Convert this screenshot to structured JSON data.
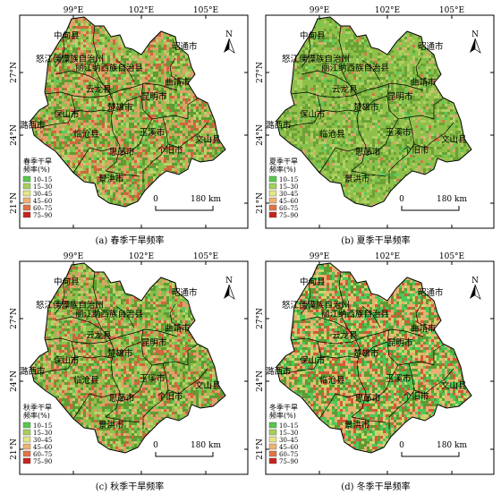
{
  "panels": [
    {
      "caption": "(a) 春季干旱频率",
      "legend_title_lines": [
        "春季干旱",
        "频率(%)"
      ],
      "palette": {
        "base": "#8fc04a",
        "dark": "#5f9a32",
        "light": "#b4d46a",
        "dry1": "#e0a06a",
        "dry2": "#d0663e",
        "wet": "#5fc85a"
      },
      "dry_density": 0.35,
      "wet_density": 0.04
    },
    {
      "caption": "(b) 夏季干旱频率",
      "legend_title_lines": [
        "夏季干旱",
        "频率(%)"
      ],
      "palette": {
        "base": "#8fc04a",
        "dark": "#6aa236",
        "light": "#b0d064",
        "dry1": "#d8a872",
        "dry2": "#d07a4a",
        "wet": "#62c85a"
      },
      "dry_density": 0.05,
      "wet_density": 0.05
    },
    {
      "caption": "(c) 秋季干旱频率",
      "legend_title_lines": [
        "秋季干旱",
        "频率(%)"
      ],
      "palette": {
        "base": "#8fc04a",
        "dark": "#5f9a32",
        "light": "#b4d46a",
        "dry1": "#e0a06a",
        "dry2": "#d0663e",
        "wet": "#5fc85a"
      },
      "dry_density": 0.32,
      "wet_density": 0.05
    },
    {
      "caption": "(d) 冬季干旱频率",
      "legend_title_lines": [
        "冬季干旱",
        "频率(%)"
      ],
      "palette": {
        "base": "#9cc64a",
        "dark": "#5f9a32",
        "light": "#c8d86a",
        "dry1": "#e6b070",
        "dry2": "#d25a38",
        "wet": "#4cc85a"
      },
      "dry_density": 0.42,
      "wet_density": 0.2
    }
  ],
  "legend_items": [
    {
      "label": "10–15",
      "color": "#57c84a"
    },
    {
      "label": "15–30",
      "color": "#a5d05a"
    },
    {
      "label": "30–45",
      "color": "#e3e684"
    },
    {
      "label": "45–60",
      "color": "#eeb270"
    },
    {
      "label": "60–75",
      "color": "#e07444"
    },
    {
      "label": "75–90",
      "color": "#c8221c"
    }
  ],
  "lon_labels": [
    "99°E",
    "102°E",
    "105°E"
  ],
  "lat_labels": [
    "27°N",
    "24°N",
    "21°N"
  ],
  "north_label": "N",
  "scale": {
    "zero": "0",
    "dist": "180 km"
  },
  "place_labels": [
    {
      "text": "中甸县"
    },
    {
      "text": "怒江傈僳族自治州"
    },
    {
      "text": "丽江纳西族自治县"
    },
    {
      "text": "昭通市"
    },
    {
      "text": "曲靖市"
    },
    {
      "text": "云龙县"
    },
    {
      "text": "昆明市"
    },
    {
      "text": "楚雄市"
    },
    {
      "text": "保山市"
    },
    {
      "text": "潞西市"
    },
    {
      "text": "玉溪市"
    },
    {
      "text": "临沧县"
    },
    {
      "text": "文山县"
    },
    {
      "text": "思茅市"
    },
    {
      "text": "个旧市"
    },
    {
      "text": "景洪市"
    }
  ],
  "colors": {
    "outline": "#000000",
    "text": "#000000"
  }
}
